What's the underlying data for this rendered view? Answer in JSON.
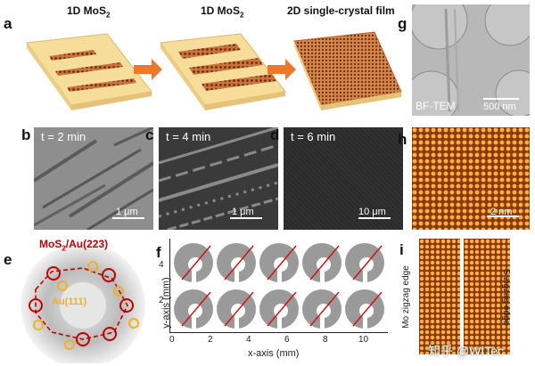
{
  "panels": {
    "a": {
      "label": "a",
      "step1": "1D MoS",
      "step1_sub": "2",
      "step2": "1D MoS",
      "step2_sub": "2",
      "step3": "2D single-crystal film"
    },
    "b": {
      "label": "b",
      "time": "t = 2 min",
      "scale": "1 μm"
    },
    "c": {
      "label": "c",
      "time": "t = 4 min",
      "scale": "1 μm"
    },
    "d": {
      "label": "d",
      "time": "t = 6 min",
      "scale": "10 μm"
    },
    "e": {
      "label": "e",
      "title_main": "MoS",
      "title_sub": "2",
      "title_rest": "/Au(223)",
      "inner": "Au(111)"
    },
    "f": {
      "label": "f",
      "xlabel": "x-axis (mm)",
      "ylabel": "y-axis (mm)",
      "xticks": [
        "0",
        "2",
        "4",
        "6",
        "8",
        "10"
      ],
      "yticks": [
        "2",
        "4"
      ]
    },
    "g": {
      "label": "g",
      "mode": "BF-TEM",
      "scale": "500 nm"
    },
    "h": {
      "label": "h",
      "scale": "2 nm"
    },
    "i": {
      "label": "i",
      "left_edge": "Mo zigzag edge",
      "right_edge": "S zigzag edge"
    }
  },
  "watermark": "知乎 @WITec",
  "colors": {
    "arrow": "#e87a2d",
    "ring_red": "#c00000",
    "ring_yellow": "#f0b020",
    "stem_orange": "#d47a2a",
    "line_red": "#cc1010"
  }
}
